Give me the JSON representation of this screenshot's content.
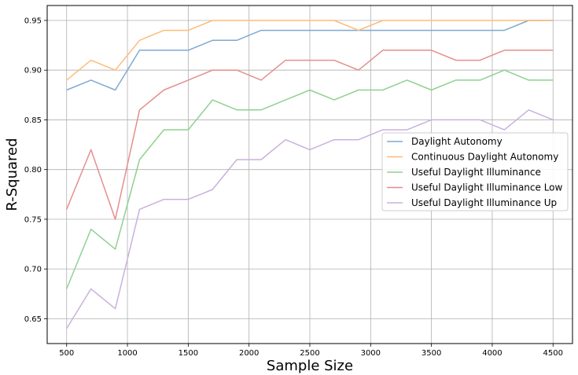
{
  "chart_data": {
    "type": "line",
    "title": "",
    "xlabel": "Sample Size",
    "ylabel": "R-Squared",
    "xlim": [
      340,
      4660
    ],
    "ylim": [
      0.625,
      0.965
    ],
    "x_ticks": [
      500,
      1000,
      1500,
      2000,
      2500,
      3000,
      3500,
      4000,
      4500
    ],
    "y_ticks": [
      0.65,
      0.7,
      0.75,
      0.8,
      0.85,
      0.9,
      0.95
    ],
    "x_tick_labels": [
      "500",
      "1000",
      "1500",
      "2000",
      "2500",
      "3000",
      "3500",
      "4000",
      "4500"
    ],
    "y_tick_labels": [
      "0.65",
      "0.70",
      "0.75",
      "0.80",
      "0.85",
      "0.90",
      "0.95"
    ],
    "grid": true,
    "legend_position": "center-right",
    "x": [
      500,
      700,
      900,
      1100,
      1300,
      1500,
      1700,
      1900,
      2100,
      2300,
      2500,
      2700,
      2900,
      3100,
      3300,
      3500,
      3700,
      3900,
      4100,
      4300,
      4500
    ],
    "series": [
      {
        "name": "Daylight Autonomy",
        "color": "#7fa9d2",
        "values": [
          0.88,
          0.89,
          0.88,
          0.92,
          0.92,
          0.92,
          0.93,
          0.93,
          0.94,
          0.94,
          0.94,
          0.94,
          0.94,
          0.94,
          0.94,
          0.94,
          0.94,
          0.94,
          0.94,
          0.95,
          0.95
        ]
      },
      {
        "name": "Continuous Daylight Autonomy",
        "color": "#ffbb78",
        "values": [
          0.89,
          0.91,
          0.9,
          0.93,
          0.94,
          0.94,
          0.95,
          0.95,
          0.95,
          0.95,
          0.95,
          0.95,
          0.94,
          0.95,
          0.95,
          0.95,
          0.95,
          0.95,
          0.95,
          0.95,
          0.95
        ]
      },
      {
        "name": "Useful Daylight Illuminance",
        "color": "#8fd18f",
        "values": [
          0.68,
          0.74,
          0.72,
          0.81,
          0.84,
          0.84,
          0.87,
          0.86,
          0.86,
          0.87,
          0.88,
          0.87,
          0.88,
          0.88,
          0.89,
          0.88,
          0.89,
          0.89,
          0.9,
          0.89,
          0.89
        ]
      },
      {
        "name": "Useful Daylight Illuminance Low",
        "color": "#e58e8e",
        "values": [
          0.76,
          0.82,
          0.75,
          0.86,
          0.88,
          0.89,
          0.9,
          0.9,
          0.89,
          0.91,
          0.91,
          0.91,
          0.9,
          0.92,
          0.92,
          0.92,
          0.91,
          0.91,
          0.92,
          0.92,
          0.92
        ]
      },
      {
        "name": "Useful Daylight Illuminance Up",
        "color": "#c9b1dc",
        "values": [
          0.64,
          0.68,
          0.66,
          0.76,
          0.77,
          0.77,
          0.78,
          0.81,
          0.81,
          0.83,
          0.82,
          0.83,
          0.83,
          0.84,
          0.84,
          0.85,
          0.85,
          0.85,
          0.84,
          0.86,
          0.85
        ]
      }
    ]
  }
}
